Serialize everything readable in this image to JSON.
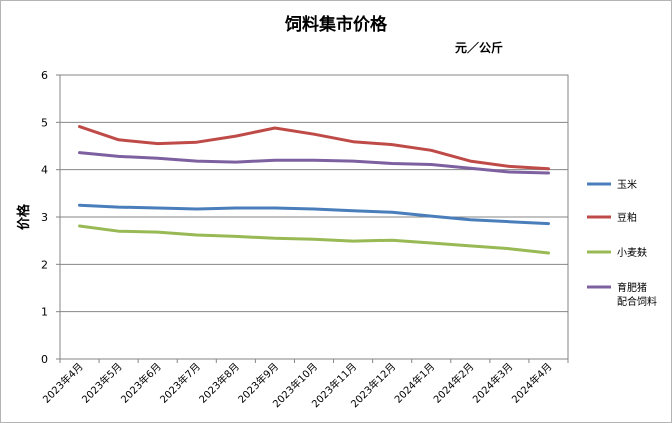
{
  "chart_data": {
    "type": "line",
    "title": "饲料集市价格",
    "unit": "元／公斤",
    "ylabel": "价格",
    "xlabel": "",
    "ylim": [
      0,
      6
    ],
    "yticks": [
      "0",
      "1",
      "2",
      "3",
      "4",
      "5",
      "6"
    ],
    "grid": true,
    "legend_position": "right",
    "categories": [
      "2023年4月",
      "2023年5月",
      "2023年6月",
      "2023年7月",
      "2023年8月",
      "2023年9月",
      "2023年10月",
      "2023年11月",
      "2023年12月",
      "2024年1月",
      "2024年2月",
      "2024年3月",
      "2024年4月"
    ],
    "series": [
      {
        "name": "玉米",
        "color": "#4a7ebb",
        "values": [
          3.25,
          3.21,
          3.19,
          3.17,
          3.19,
          3.19,
          3.17,
          3.13,
          3.1,
          3.02,
          2.94,
          2.9,
          2.86
        ]
      },
      {
        "name": "豆粕",
        "color": "#be4b48",
        "values": [
          4.91,
          4.63,
          4.55,
          4.58,
          4.71,
          4.88,
          4.75,
          4.59,
          4.53,
          4.41,
          4.18,
          4.07,
          4.02
        ]
      },
      {
        "name": "小麦麸",
        "color": "#98b954",
        "values": [
          2.81,
          2.7,
          2.68,
          2.62,
          2.59,
          2.55,
          2.53,
          2.49,
          2.51,
          2.45,
          2.39,
          2.33,
          2.24
        ]
      },
      {
        "name": "育肥猪配合饲料",
        "label_lines": [
          "育肥猪",
          "配合饲料"
        ],
        "color": "#7d60a0",
        "values": [
          4.36,
          4.28,
          4.24,
          4.18,
          4.16,
          4.2,
          4.2,
          4.18,
          4.13,
          4.11,
          4.03,
          3.95,
          3.93
        ]
      }
    ]
  }
}
